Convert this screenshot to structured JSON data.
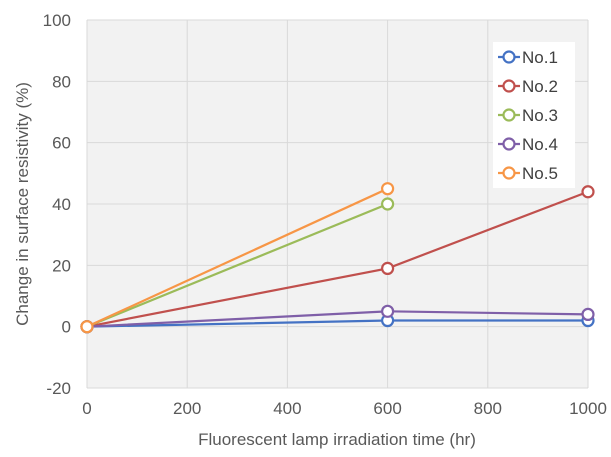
{
  "chart_data": {
    "type": "line",
    "title": "",
    "xlabel": "Fluorescent lamp irradiation time (hr)",
    "ylabel": "Change in surface resistivity (%)",
    "xlim": [
      0,
      1000
    ],
    "ylim": [
      -20,
      100
    ],
    "xticks": [
      0,
      200,
      400,
      600,
      800,
      1000
    ],
    "yticks": [
      -20,
      0,
      20,
      40,
      60,
      80,
      100
    ],
    "grid": true,
    "legend_position": "top-right",
    "series": [
      {
        "name": "No.1",
        "color": "#4472C4",
        "x": [
          0,
          600,
          1000
        ],
        "y": [
          0,
          2,
          2
        ]
      },
      {
        "name": "No.2",
        "color": "#C0504D",
        "x": [
          0,
          600,
          1000
        ],
        "y": [
          0,
          19,
          44
        ]
      },
      {
        "name": "No.3",
        "color": "#9BBB59",
        "x": [
          0,
          600
        ],
        "y": [
          0,
          40
        ]
      },
      {
        "name": "No.4",
        "color": "#7F5FA8",
        "x": [
          0,
          600,
          1000
        ],
        "y": [
          0,
          5,
          4
        ]
      },
      {
        "name": "No.5",
        "color": "#F79646",
        "x": [
          0,
          600
        ],
        "y": [
          0,
          45
        ]
      }
    ]
  }
}
